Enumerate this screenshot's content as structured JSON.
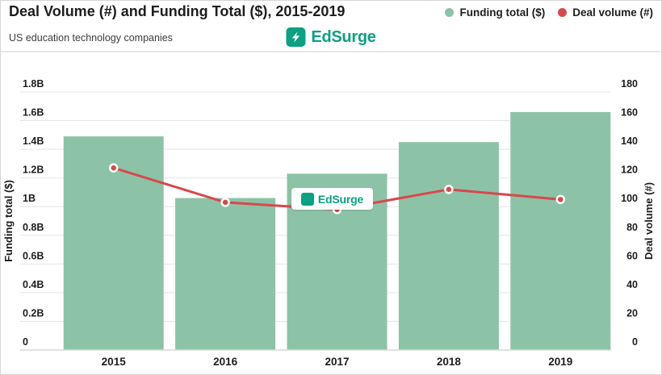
{
  "header": {
    "title": "Deal Volume (#) and Funding Total ($), 2015-2019",
    "subtitle": "US education technology companies",
    "brand": "EdSurge"
  },
  "legend": {
    "funding": {
      "label": "Funding total ($)",
      "color": "#8cc3a7"
    },
    "deals": {
      "label": "Deal volume (#)",
      "color": "#d8484c"
    }
  },
  "watermark": {
    "brand": "EdSurge"
  },
  "colors": {
    "bar": "#8cc3a7",
    "line": "#d8484c",
    "marker_ring": "#ffffff",
    "brand_green": "#0ba183",
    "grid": "#e4e4e4",
    "baseline": "#d9d9d9",
    "text_dark": "#1d1d1d"
  },
  "chart_data": {
    "type": "bar",
    "title": "Deal Volume (#) and Funding Total ($), 2015-2019",
    "subtitle": "US education technology companies",
    "categories": [
      "2015",
      "2016",
      "2017",
      "2018",
      "2019"
    ],
    "series": [
      {
        "name": "Funding total ($)",
        "type": "bar",
        "axis": "left",
        "unit": "USD billions",
        "values": [
          1.49,
          1.06,
          1.23,
          1.45,
          1.66
        ]
      },
      {
        "name": "Deal volume (#)",
        "type": "line",
        "axis": "right",
        "unit": "deals",
        "values": [
          127,
          103,
          98,
          112,
          105
        ]
      }
    ],
    "left_axis": {
      "title": "Funding total ($)",
      "min": 0,
      "max": 1.8,
      "tick_labels": [
        "1.8B",
        "1.6B",
        "1.4B",
        "1.2B",
        "1B",
        "0.8B",
        "0.6B",
        "0.4B",
        "0.2B",
        "0"
      ]
    },
    "right_axis": {
      "title": "Deal volume (#)",
      "min": 0,
      "max": 180,
      "tick_labels": [
        "180",
        "160",
        "140",
        "120",
        "100",
        "80",
        "60",
        "40",
        "20",
        "0"
      ]
    },
    "legend_position": "top-right",
    "grid": "horizontal"
  }
}
